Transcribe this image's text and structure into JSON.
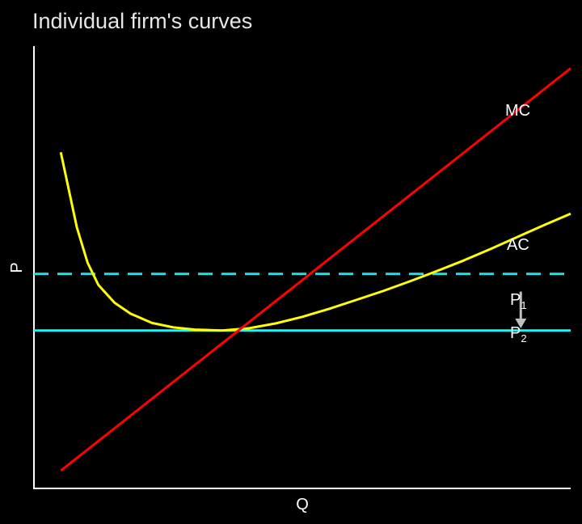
{
  "chart_data": {
    "type": "line",
    "title": "Individual firm's curves",
    "xlabel": "Q",
    "ylabel": "P",
    "xlim": [
      0,
      100
    ],
    "ylim": [
      0,
      100
    ],
    "grid": false,
    "series": [
      {
        "name": "MC",
        "color": "#ff0000",
        "style": "solid",
        "x": [
          5,
          100
        ],
        "y": [
          4,
          95
        ]
      },
      {
        "name": "AC",
        "color": "#ffff00",
        "style": "solid",
        "x": [
          5,
          8,
          10,
          12,
          15,
          18,
          22,
          26,
          30,
          35,
          40,
          45,
          50,
          55,
          60,
          65,
          70,
          75,
          80,
          85,
          90,
          95,
          100
        ],
        "y": [
          76,
          59,
          51,
          46,
          42,
          39.5,
          37.4,
          36.4,
          35.9,
          35.7,
          36.2,
          37.3,
          38.8,
          40.6,
          42.6,
          44.6,
          46.8,
          49.1,
          51.5,
          54.1,
          56.8,
          59.5,
          62.1
        ]
      },
      {
        "name": "P1",
        "color": "#22e0e8",
        "style": "dashed",
        "x": [
          0,
          100
        ],
        "y": [
          48.5,
          48.5
        ]
      },
      {
        "name": "P2",
        "color": "#00ffff",
        "style": "solid",
        "x": [
          0,
          100
        ],
        "y": [
          35.7,
          35.7
        ]
      }
    ],
    "annotations": [
      {
        "type": "arrow",
        "label": "",
        "from": {
          "x": 90.7,
          "y": 44.5
        },
        "to": {
          "x": 90.7,
          "y": 36.2
        },
        "color": "#bfbfbf"
      }
    ],
    "labels": {
      "mc": "MC",
      "ac": "AC",
      "p1_main": "P",
      "p1_sub": "1",
      "p2_main": "P",
      "p2_sub": "2"
    }
  }
}
